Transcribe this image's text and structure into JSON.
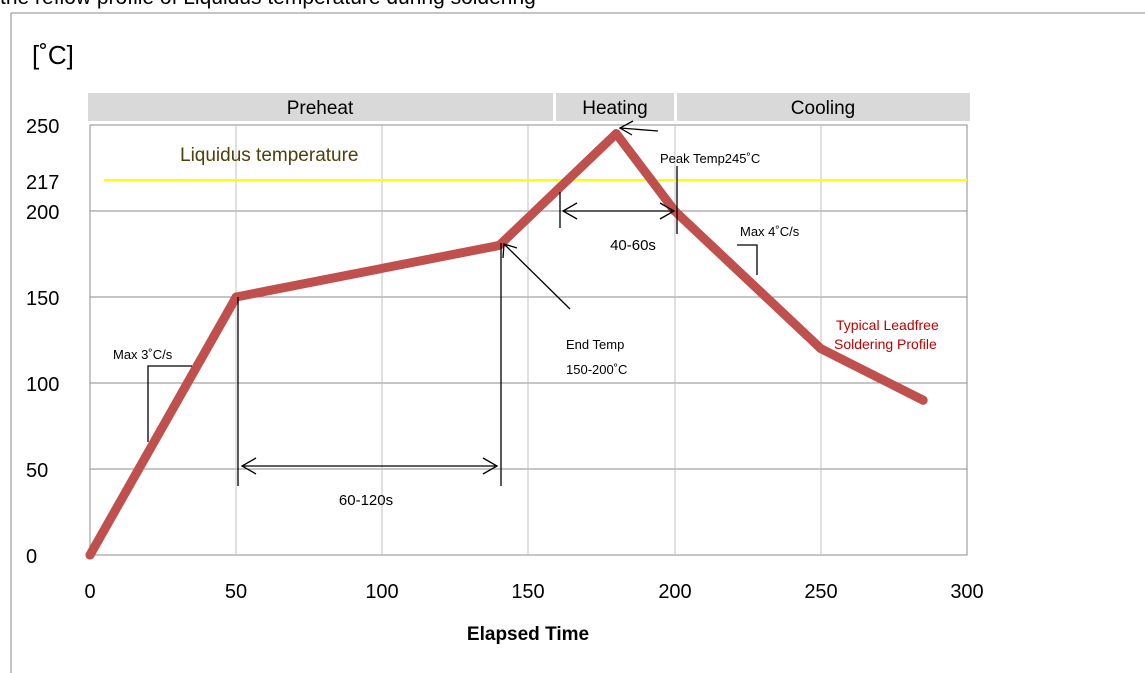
{
  "chart_data": {
    "type": "line",
    "title": "",
    "top_caption": "the reflow profile of Liquidus temperature during soldering",
    "xlabel": "Elapsed Time",
    "ylabel": "[˚C]",
    "xlim": [
      0,
      300
    ],
    "ylim": [
      0,
      250
    ],
    "x_ticks": [
      "0",
      "50",
      "100",
      "150",
      "200",
      "250",
      "300"
    ],
    "y_ticks": [
      "0",
      "50",
      "100",
      "150",
      "200",
      "217",
      "250"
    ],
    "grid": true,
    "series": [
      {
        "name": "Typical Leadfree Soldering Profile",
        "color": "#c0504d",
        "points": [
          [
            0,
            0
          ],
          [
            50,
            150
          ],
          [
            140,
            180
          ],
          [
            180,
            245
          ],
          [
            200,
            200
          ],
          [
            250,
            120
          ],
          [
            285,
            90
          ]
        ]
      }
    ],
    "reference_line": {
      "label": "Liquidus temperature",
      "y": 217,
      "color": "#ffff00"
    },
    "phases": [
      {
        "label": "Preheat",
        "x_start": 0,
        "x_end": 160
      },
      {
        "label": "Heating",
        "x_start": 160,
        "x_end": 200
      },
      {
        "label": "Cooling",
        "x_start": 200,
        "x_end": 300
      }
    ],
    "annotations": {
      "peak": "Peak Temp245˚C",
      "time_above_liquidus": "40-60s",
      "cool_rate": "Max 4˚C/s",
      "end_temp_line1": "End Temp",
      "end_temp_line2": "150-200˚C",
      "heat_rate": "Max 3˚C/s",
      "preheat_time": "60-120s",
      "profile_line1": "Typical Leadfree",
      "profile_line2": "Soldering Profile"
    }
  }
}
